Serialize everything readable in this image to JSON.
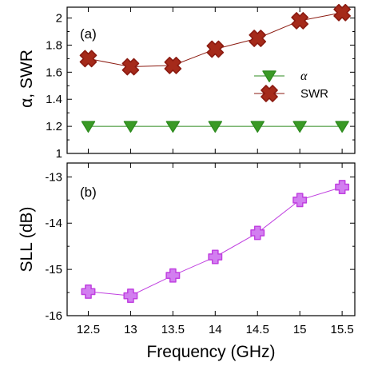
{
  "chart_data": [
    {
      "panel": "(a)",
      "type": "line",
      "xlabel": "",
      "ylabel": "α, SWR",
      "x": [
        12.5,
        13,
        13.5,
        14,
        14.5,
        15,
        15.5
      ],
      "xlim": [
        12.25,
        15.65
      ],
      "ylim": [
        1.0,
        2.08
      ],
      "yticks": [
        1,
        1.2,
        1.4,
        1.6,
        1.8,
        2
      ],
      "ytick_labels": [
        "1",
        "1.2",
        "1.4",
        "1.6",
        "1.8",
        "2"
      ],
      "legend_position": "middle-right",
      "series": [
        {
          "name": "α",
          "marker": "triangle-down",
          "color": "#2e8b1f",
          "marker_fill": "#3a9a25",
          "values": [
            1.2,
            1.2,
            1.2,
            1.2,
            1.2,
            1.2,
            1.2
          ]
        },
        {
          "name": "SWR",
          "marker": "x-filled",
          "color": "#8b1a10",
          "marker_fill": "#a52a1a",
          "values": [
            1.7,
            1.64,
            1.65,
            1.77,
            1.85,
            1.98,
            2.04
          ]
        }
      ]
    },
    {
      "panel": "(b)",
      "type": "line",
      "xlabel": "Frequency (GHz)",
      "ylabel": "SLL (dB)",
      "x": [
        12.5,
        13,
        13.5,
        14,
        14.5,
        15,
        15.5
      ],
      "xlim": [
        12.25,
        15.65
      ],
      "ylim": [
        -16.0,
        -12.7
      ],
      "yticks": [
        -16,
        -15,
        -14,
        -13
      ],
      "ytick_labels": [
        "-16",
        "-15",
        "-14",
        "-13"
      ],
      "xtick_labels": [
        "12.5",
        "13",
        "13.5",
        "14",
        "14.5",
        "15",
        "15.5"
      ],
      "series": [
        {
          "marker": "plus-filled",
          "color": "#c040e0",
          "marker_fill": "#d27ef0",
          "values": [
            -15.48,
            -15.57,
            -15.13,
            -14.73,
            -14.21,
            -13.5,
            -13.22
          ]
        }
      ]
    }
  ]
}
